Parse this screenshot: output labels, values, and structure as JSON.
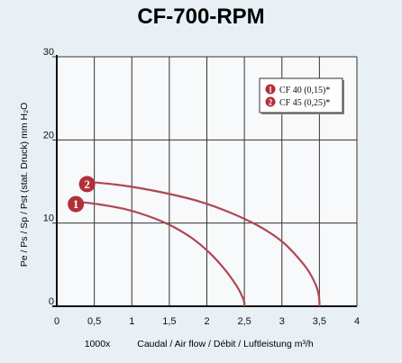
{
  "title": "CF-700-RPM",
  "colors": {
    "background": "#e8f0f6",
    "plot_background": "#f7f9fb",
    "axis": "#111111",
    "grid": "#333333",
    "curve": "#b04650",
    "marker": "#b0303a",
    "legend_border": "#333333",
    "legend_bg": "#ffffff"
  },
  "chart_data": {
    "type": "line",
    "title": "CF-700-RPM",
    "xlabel": "Caudal / Air flow / Débit / Luftleistung m³/h",
    "x_multiplier_label": "1000x",
    "ylabel": "Pe / Ps / Sp / Pst (stat. Druck) mm H₂O",
    "xlim": [
      0,
      4
    ],
    "ylim": [
      0,
      30
    ],
    "x_ticks": [
      "0",
      "0,5",
      "1",
      "1,5",
      "2",
      "2,5",
      "3",
      "3,5",
      "4"
    ],
    "x_tick_values": [
      0,
      0.5,
      1,
      1.5,
      2,
      2.5,
      3,
      3.5,
      4
    ],
    "y_ticks": [
      "0",
      "10",
      "20",
      "30"
    ],
    "y_tick_values": [
      0,
      10,
      20,
      30
    ],
    "grid": "on",
    "legend_position": "top-right",
    "series": [
      {
        "name": "CF 40 (0,15)*",
        "label": "1",
        "x": [
          0.35,
          0.6,
          0.9,
          1.2,
          1.5,
          1.8,
          2.05,
          2.25,
          2.4,
          2.48,
          2.5,
          2.5
        ],
        "y": [
          12.5,
          12.2,
          11.7,
          10.9,
          9.8,
          8.2,
          6.3,
          4.3,
          2.4,
          1.0,
          0.4,
          0
        ]
      },
      {
        "name": "CF 45 (0,25)*",
        "label": "2",
        "x": [
          0.5,
          0.9,
          1.4,
          1.9,
          2.3,
          2.7,
          3.0,
          3.2,
          3.35,
          3.45,
          3.49,
          3.5,
          3.5
        ],
        "y": [
          14.9,
          14.5,
          13.7,
          12.6,
          11.3,
          9.6,
          7.8,
          6.0,
          4.3,
          2.6,
          1.4,
          0.5,
          0
        ]
      }
    ]
  }
}
